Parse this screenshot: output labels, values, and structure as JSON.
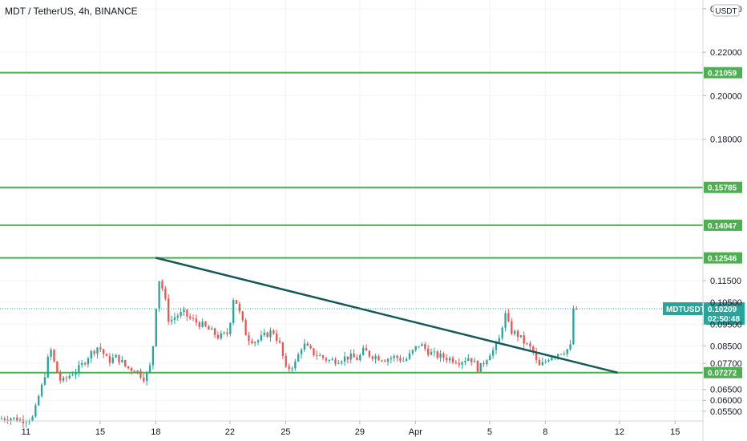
{
  "chart_data": {
    "type": "candlestick",
    "title": "MDT / TetherUS, 4h, BINANCE",
    "currency_label": "USDT",
    "symbol_tag": "MDTUSDT",
    "last_price_text": "0.10209",
    "countdown": "02:50:48",
    "ylim": [
      0.0505,
      0.244
    ],
    "y_ticks": [
      {
        "value": 0.24,
        "label": "0.24000"
      },
      {
        "value": 0.22,
        "label": "0.22000"
      },
      {
        "value": 0.2,
        "label": "0.20000"
      },
      {
        "value": 0.18,
        "label": "0.18000"
      },
      {
        "value": 0.115,
        "label": "0.11500"
      },
      {
        "value": 0.105,
        "label": "0.10500"
      },
      {
        "value": 0.095,
        "label": "0.09500"
      },
      {
        "value": 0.085,
        "label": "0.08500"
      },
      {
        "value": 0.077,
        "label": "0.07700"
      },
      {
        "value": 0.065,
        "label": "0.06500"
      },
      {
        "value": 0.06,
        "label": "0.06000"
      },
      {
        "value": 0.055,
        "label": "0.05500"
      }
    ],
    "x_ticks": [
      {
        "day": 11,
        "label": "11"
      },
      {
        "day": 15,
        "label": "15"
      },
      {
        "day": 18,
        "label": "18"
      },
      {
        "day": 22,
        "label": "22"
      },
      {
        "day": 25,
        "label": "25"
      },
      {
        "day": 29,
        "label": "29"
      },
      {
        "day": 32,
        "label": "Apr"
      },
      {
        "day": 36,
        "label": "5"
      },
      {
        "day": 39,
        "label": "8"
      },
      {
        "day": 43,
        "label": "12"
      },
      {
        "day": 46,
        "label": "15"
      }
    ],
    "x_range_days": [
      9.6,
      47.5
    ],
    "horizontal_levels": [
      0.21059,
      0.15785,
      0.14047,
      0.12546,
      0.07272
    ],
    "level_color": "#4caf50",
    "trendline": {
      "start": {
        "day": 18.0,
        "price": 0.1255
      },
      "end": {
        "day": 42.9,
        "price": 0.0727
      },
      "color": "#17595b"
    },
    "last_price_line": 0.10209,
    "last_price_color": "#26a69a",
    "up_color": "#26a69a",
    "down_color": "#ef5350",
    "anchors": [
      [
        9.6,
        0.0515
      ],
      [
        10.2,
        0.052
      ],
      [
        10.8,
        0.0508
      ],
      [
        11.5,
        0.052
      ],
      [
        11.7,
        0.06
      ],
      [
        12.0,
        0.068
      ],
      [
        12.4,
        0.084
      ],
      [
        12.7,
        0.074
      ],
      [
        13.0,
        0.068
      ],
      [
        13.5,
        0.072
      ],
      [
        14.0,
        0.075
      ],
      [
        14.5,
        0.081
      ],
      [
        15.0,
        0.085
      ],
      [
        15.5,
        0.078
      ],
      [
        16.0,
        0.08
      ],
      [
        16.5,
        0.075
      ],
      [
        17.0,
        0.074
      ],
      [
        17.5,
        0.07
      ],
      [
        17.8,
        0.076
      ],
      [
        18.0,
        0.09
      ],
      [
        18.2,
        0.117
      ],
      [
        18.5,
        0.11
      ],
      [
        18.8,
        0.096
      ],
      [
        19.2,
        0.099
      ],
      [
        19.6,
        0.1
      ],
      [
        20.0,
        0.097
      ],
      [
        20.5,
        0.095
      ],
      [
        21.0,
        0.092
      ],
      [
        21.5,
        0.089
      ],
      [
        22.0,
        0.091
      ],
      [
        22.3,
        0.109
      ],
      [
        22.6,
        0.1
      ],
      [
        23.0,
        0.089
      ],
      [
        23.5,
        0.087
      ],
      [
        24.0,
        0.09
      ],
      [
        24.4,
        0.092
      ],
      [
        24.8,
        0.085
      ],
      [
        25.1,
        0.074
      ],
      [
        25.6,
        0.077
      ],
      [
        26.0,
        0.086
      ],
      [
        26.5,
        0.082
      ],
      [
        27.0,
        0.08
      ],
      [
        27.5,
        0.078
      ],
      [
        28.0,
        0.079
      ],
      [
        28.5,
        0.08
      ],
      [
        29.0,
        0.079
      ],
      [
        29.3,
        0.083
      ],
      [
        29.6,
        0.081
      ],
      [
        30.0,
        0.08
      ],
      [
        30.5,
        0.079
      ],
      [
        31.0,
        0.08
      ],
      [
        31.5,
        0.078
      ],
      [
        32.0,
        0.083
      ],
      [
        32.3,
        0.086
      ],
      [
        32.7,
        0.083
      ],
      [
        33.0,
        0.081
      ],
      [
        33.5,
        0.08
      ],
      [
        34.0,
        0.079
      ],
      [
        34.5,
        0.078
      ],
      [
        35.0,
        0.08
      ],
      [
        35.5,
        0.074
      ],
      [
        35.8,
        0.078
      ],
      [
        36.1,
        0.082
      ],
      [
        36.3,
        0.083
      ],
      [
        36.6,
        0.088
      ],
      [
        36.9,
        0.1
      ],
      [
        37.2,
        0.092
      ],
      [
        37.6,
        0.09
      ],
      [
        38.0,
        0.086
      ],
      [
        38.4,
        0.083
      ],
      [
        38.7,
        0.075
      ],
      [
        39.0,
        0.077
      ],
      [
        39.3,
        0.08
      ],
      [
        39.8,
        0.082
      ],
      [
        40.2,
        0.083
      ],
      [
        40.5,
        0.085
      ],
      [
        40.6,
        0.1021
      ]
    ]
  }
}
